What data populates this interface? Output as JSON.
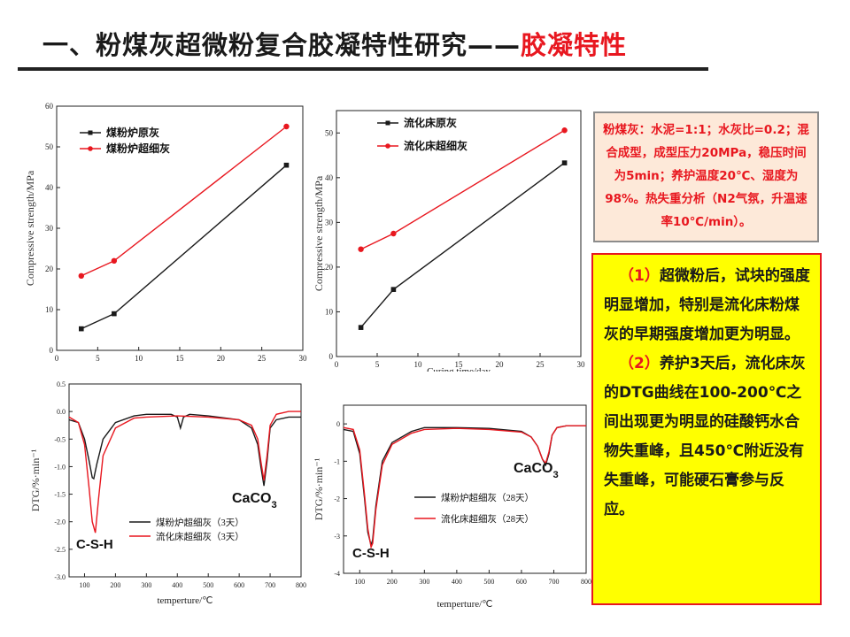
{
  "title": {
    "main": "一、粉煤灰超微粉复合胶凝特性研究——",
    "accent": "胶凝特性"
  },
  "note": "粉煤灰：水泥=1:1；水灰比=0.2；混合成型，成型压力20MPa，稳压时间为5min；养护温度20℃、湿度为98%。热失重分析（N2气氛，升温速率10℃/min）。",
  "conclusion": {
    "p1_num": "（1）",
    "p1": "超微粉后，试块的强度明显增加，特别是流化床粉煤灰的早期强度增加更为明显。",
    "p2_num": "（2）",
    "p2": "养护3天后，流化床灰的DTG曲线在100-200℃之间出现更为明显的硅酸钙水合物失重峰，且450℃附近没有失重峰，可能硬石膏参与反应。"
  },
  "colors": {
    "black": "#1a1a1a",
    "red": "#e8171f"
  },
  "chart_data": [
    {
      "type": "line",
      "ylabel": "Compressive strength/MPa",
      "xlim": [
        0,
        30
      ],
      "ylim": [
        0,
        60
      ],
      "xticks": [
        0,
        5,
        10,
        15,
        20,
        25,
        30
      ],
      "yticks": [
        0,
        10,
        20,
        30,
        40,
        50,
        60
      ],
      "legend": "top-left",
      "series": [
        {
          "name": "煤粉炉原灰",
          "color": "#1a1a1a",
          "marker": "square",
          "x": [
            3,
            7,
            28
          ],
          "y": [
            5.3,
            9.0,
            45.5
          ]
        },
        {
          "name": "煤粉炉超细灰",
          "color": "#e8171f",
          "marker": "circle",
          "x": [
            3,
            7,
            28
          ],
          "y": [
            18.3,
            22.0,
            55.0
          ]
        }
      ]
    },
    {
      "type": "line",
      "ylabel": "Compressive strength/MPa",
      "xlabel": "Curing time/day",
      "xlim": [
        0,
        30
      ],
      "ylim": [
        0,
        55
      ],
      "xticks": [
        0,
        5,
        10,
        15,
        20,
        25,
        30
      ],
      "yticks": [
        0,
        10,
        20,
        30,
        40,
        50
      ],
      "legend": "top-left",
      "series": [
        {
          "name": "流化床原灰",
          "color": "#1a1a1a",
          "marker": "square",
          "x": [
            3,
            7,
            28
          ],
          "y": [
            6.5,
            15.0,
            43.3
          ]
        },
        {
          "name": "流化床超细灰",
          "color": "#e8171f",
          "marker": "circle",
          "x": [
            3,
            7,
            28
          ],
          "y": [
            24.0,
            27.5,
            50.6
          ]
        }
      ]
    },
    {
      "type": "line",
      "ylabel": "DTG/%·min⁻¹",
      "xlabel": "temperture/℃",
      "xlim": [
        50,
        800
      ],
      "ylim": [
        -3.0,
        0.5
      ],
      "xticks": [
        100,
        200,
        300,
        400,
        500,
        600,
        700,
        800
      ],
      "yticks": [
        -3.0,
        -2.5,
        -2.0,
        -1.5,
        -1.0,
        -0.5,
        0.0,
        0.5
      ],
      "annotations": [
        "CaCO3",
        "C-S-H"
      ],
      "legend": "bottom-left",
      "series": [
        {
          "name": "煤粉炉超细灰（3天）",
          "color": "#1a1a1a",
          "x": [
            50,
            80,
            100,
            115,
            125,
            130,
            140,
            160,
            200,
            260,
            300,
            380,
            400,
            410,
            420,
            440,
            500,
            600,
            640,
            660,
            670,
            680,
            690,
            700,
            720,
            760,
            800
          ],
          "y": [
            -0.15,
            -0.2,
            -0.5,
            -0.9,
            -1.2,
            -1.22,
            -0.95,
            -0.5,
            -0.2,
            -0.08,
            -0.05,
            -0.05,
            -0.1,
            -0.3,
            -0.1,
            -0.05,
            -0.08,
            -0.15,
            -0.3,
            -0.6,
            -1.0,
            -1.35,
            -0.9,
            -0.3,
            -0.15,
            -0.1,
            -0.1
          ]
        },
        {
          "name": "流化床超细灰（3天）",
          "color": "#e8171f",
          "x": [
            50,
            80,
            100,
            115,
            125,
            135,
            145,
            160,
            200,
            260,
            300,
            400,
            500,
            600,
            640,
            660,
            670,
            680,
            690,
            700,
            720,
            760,
            800
          ],
          "y": [
            -0.1,
            -0.2,
            -0.6,
            -1.4,
            -2.0,
            -2.2,
            -1.6,
            -0.8,
            -0.3,
            -0.12,
            -0.1,
            -0.08,
            -0.1,
            -0.15,
            -0.25,
            -0.5,
            -0.9,
            -1.25,
            -0.8,
            -0.25,
            -0.05,
            0.0,
            0.0
          ]
        }
      ]
    },
    {
      "type": "line",
      "ylabel": "DTG/%·min⁻¹",
      "xlabel": "temperture/℃",
      "xlim": [
        50,
        800
      ],
      "ylim": [
        -4,
        0.5
      ],
      "xticks": [
        100,
        200,
        300,
        400,
        500,
        600,
        700,
        800
      ],
      "yticks": [
        -4,
        -3,
        -2,
        -1,
        0
      ],
      "annotations": [
        "CaCO3",
        "C-S-H"
      ],
      "legend": "bottom-center",
      "series": [
        {
          "name": "煤粉炉超细灰（28天）",
          "color": "#1a1a1a",
          "x": [
            50,
            80,
            100,
            115,
            125,
            135,
            140,
            150,
            170,
            200,
            260,
            300,
            400,
            500,
            600,
            630,
            650,
            665,
            675,
            685,
            695,
            710,
            740,
            800
          ],
          "y": [
            -0.15,
            -0.2,
            -0.8,
            -2.0,
            -2.9,
            -3.25,
            -3.1,
            -2.2,
            -1.0,
            -0.5,
            -0.2,
            -0.1,
            -0.1,
            -0.12,
            -0.2,
            -0.35,
            -0.6,
            -0.95,
            -1.1,
            -0.8,
            -0.3,
            -0.1,
            -0.05,
            -0.05
          ]
        },
        {
          "name": "流化床超细灰（28天）",
          "color": "#e8171f",
          "x": [
            50,
            80,
            100,
            115,
            125,
            135,
            140,
            150,
            170,
            200,
            260,
            300,
            400,
            500,
            600,
            630,
            650,
            665,
            675,
            685,
            695,
            710,
            740,
            800
          ],
          "y": [
            -0.1,
            -0.15,
            -0.7,
            -1.9,
            -2.8,
            -3.3,
            -3.2,
            -2.3,
            -1.1,
            -0.55,
            -0.25,
            -0.15,
            -0.12,
            -0.15,
            -0.22,
            -0.35,
            -0.6,
            -0.95,
            -1.05,
            -0.75,
            -0.3,
            -0.1,
            -0.05,
            -0.05
          ]
        }
      ]
    }
  ]
}
